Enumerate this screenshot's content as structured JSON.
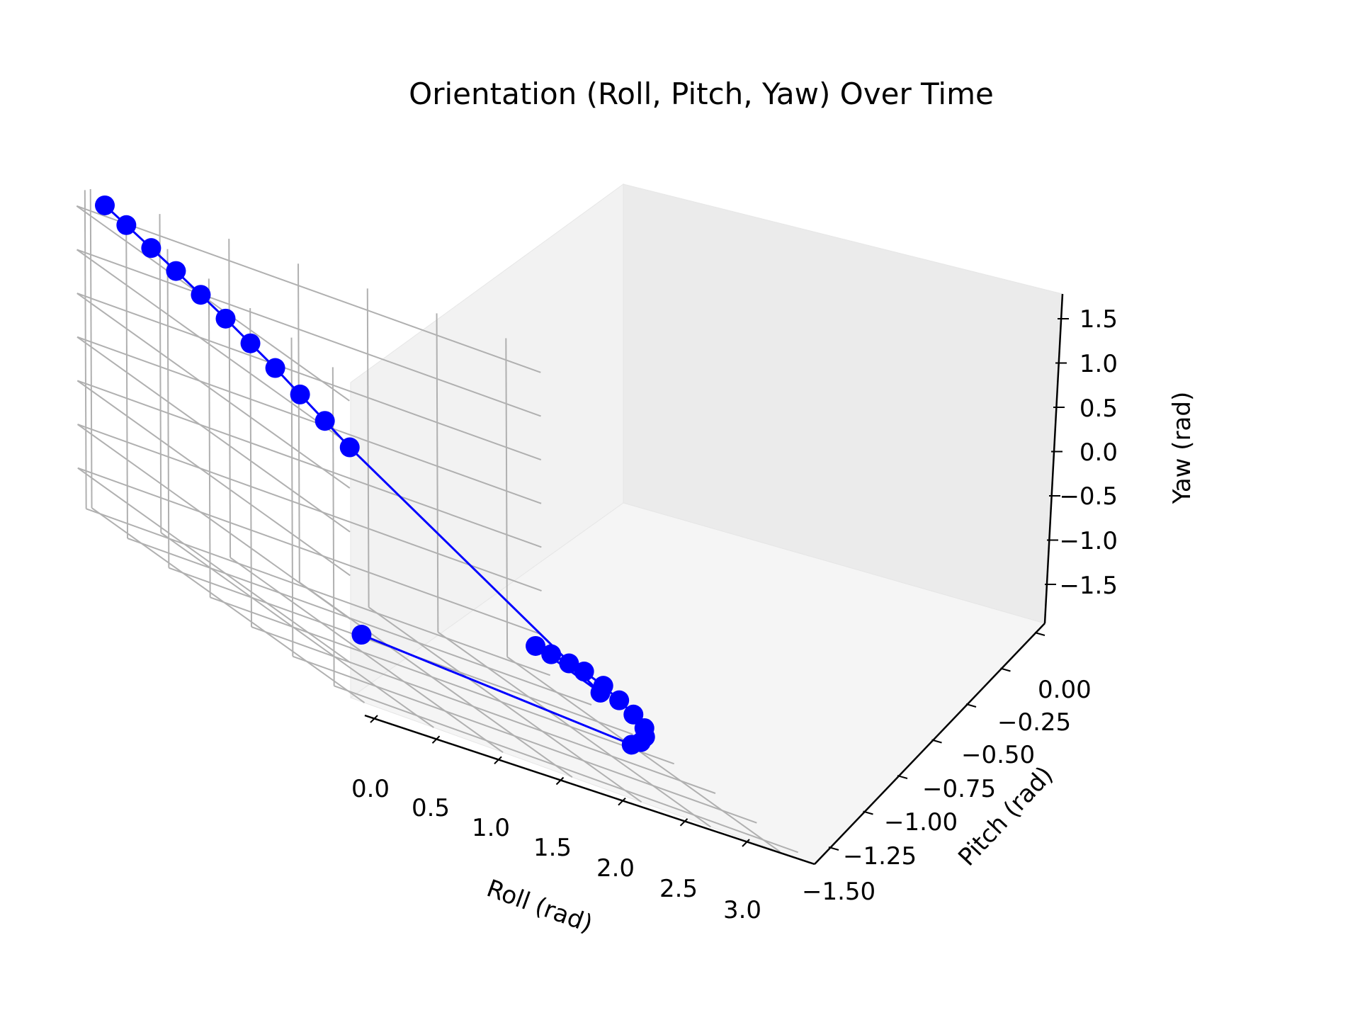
{
  "chart_data": {
    "type": "scatter",
    "projection": "3d",
    "title": "Orientation (Roll, Pitch, Yaw) Over Time",
    "xlabel": "Roll (rad)",
    "ylabel": "Pitch (rad)",
    "zlabel": "Yaw (rad)",
    "xlim": [
      -0.1,
      3.25
    ],
    "ylim": [
      -1.6,
      0.05
    ],
    "zlim": [
      -1.9,
      1.75
    ],
    "xticks": [
      "0.0",
      "0.5",
      "1.0",
      "1.5",
      "2.0",
      "2.5",
      "3.0"
    ],
    "yticks": [
      "0.00",
      "−0.25",
      "−0.50",
      "−0.75",
      "−1.00",
      "−1.25",
      "−1.50"
    ],
    "zticks": [
      "1.5",
      "1.0",
      "0.5",
      "0.0",
      "−0.5",
      "−1.0",
      "−1.5"
    ],
    "grid": true,
    "series": [
      {
        "color": "#0000ff",
        "marker": "circle",
        "line": true,
        "points": [
          [
            0.1,
            -1.5,
            -1.2
          ],
          [
            2.05,
            -1.5,
            -1.35
          ],
          [
            2.2,
            -1.43,
            -1.33
          ],
          [
            2.35,
            -1.33,
            -1.32
          ],
          [
            2.5,
            -1.2,
            -1.31
          ],
          [
            2.6,
            -1.05,
            -1.3
          ],
          [
            2.7,
            -0.88,
            -1.31
          ],
          [
            2.8,
            -0.7,
            -1.33
          ],
          [
            2.9,
            -0.5,
            -1.38
          ],
          [
            2.97,
            -0.35,
            -1.45
          ],
          [
            3.02,
            -0.2,
            -1.52
          ],
          [
            3.05,
            -0.08,
            -1.57
          ],
          [
            2.6,
            -0.85,
            -1.32
          ],
          [
            0.02,
            -1.5,
            0.9
          ],
          [
            0.02,
            -1.35,
            1.0
          ],
          [
            0.02,
            -1.2,
            1.1
          ],
          [
            0.02,
            -1.05,
            1.2
          ],
          [
            0.02,
            -0.9,
            1.28
          ],
          [
            0.02,
            -0.75,
            1.36
          ],
          [
            0.02,
            -0.6,
            1.43
          ],
          [
            0.02,
            -0.45,
            1.5
          ],
          [
            0.02,
            -0.3,
            1.56
          ],
          [
            0.02,
            -0.15,
            1.62
          ],
          [
            0.02,
            -0.02,
            1.67
          ]
        ]
      }
    ]
  }
}
